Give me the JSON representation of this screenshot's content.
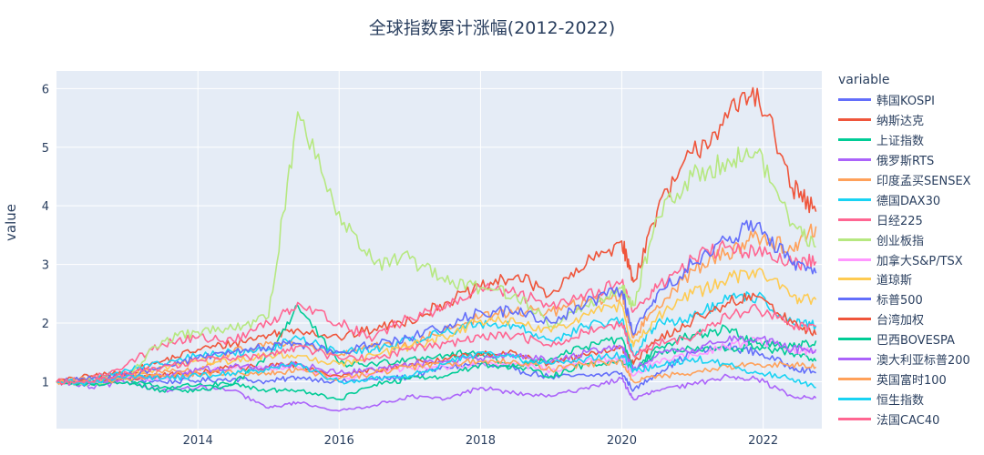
{
  "chart_data": {
    "type": "line",
    "title": "全球指数累计涨幅(2012-2022)",
    "xlabel": "",
    "ylabel": "value",
    "legend_title": "variable",
    "legend_position": "right",
    "grid": true,
    "xlim": [
      "2012-01-01",
      "2022-10-31"
    ],
    "ylim": [
      0.2,
      6.3
    ],
    "x_ticks": [
      "2014",
      "2016",
      "2018",
      "2020",
      "2022"
    ],
    "y_ticks": [
      1,
      2,
      3,
      4,
      5,
      6
    ],
    "x": [
      "2012-01",
      "2012-07",
      "2013-01",
      "2013-07",
      "2014-01",
      "2014-07",
      "2015-01",
      "2015-06",
      "2016-01",
      "2016-07",
      "2017-01",
      "2017-07",
      "2018-01",
      "2018-07",
      "2019-01",
      "2019-07",
      "2020-01",
      "2020-03",
      "2020-07",
      "2021-01",
      "2021-07",
      "2021-12",
      "2022-06",
      "2022-10"
    ],
    "series": [
      {
        "name": "韩国KOSPI",
        "color": "#636efa",
        "values": [
          1.0,
          0.98,
          1.05,
          1.0,
          1.02,
          1.05,
          1.0,
          1.08,
          1.0,
          1.04,
          1.08,
          1.25,
          1.3,
          1.2,
          1.08,
          1.1,
          1.15,
          0.85,
          1.15,
          1.5,
          1.6,
          1.5,
          1.25,
          1.15
        ]
      },
      {
        "name": "纳斯达克",
        "color": "#ef553b",
        "values": [
          1.0,
          1.1,
          1.15,
          1.35,
          1.55,
          1.65,
          1.8,
          1.9,
          1.75,
          1.9,
          2.05,
          2.35,
          2.6,
          2.8,
          2.5,
          3.0,
          3.4,
          2.7,
          3.9,
          4.9,
          5.5,
          6.0,
          4.3,
          3.9
        ]
      },
      {
        "name": "上证指数",
        "color": "#00cc96",
        "values": [
          1.0,
          0.95,
          1.05,
          0.9,
          0.95,
          0.95,
          1.45,
          2.3,
          1.3,
          1.3,
          1.4,
          1.45,
          1.5,
          1.25,
          1.1,
          1.3,
          1.35,
          1.2,
          1.5,
          1.55,
          1.55,
          1.6,
          1.48,
          1.35
        ]
      },
      {
        "name": "俄罗斯RTS",
        "color": "#ab63fa",
        "values": [
          1.0,
          0.9,
          1.0,
          0.85,
          0.9,
          0.85,
          0.55,
          0.65,
          0.5,
          0.6,
          0.75,
          0.7,
          0.9,
          0.8,
          0.75,
          0.9,
          1.05,
          0.7,
          0.85,
          0.95,
          1.1,
          1.05,
          0.75,
          0.72
        ]
      },
      {
        "name": "印度孟买SENSEX",
        "color": "#ffa15a",
        "values": [
          1.0,
          1.05,
          1.1,
          1.15,
          1.2,
          1.5,
          1.65,
          1.65,
          1.45,
          1.6,
          1.6,
          1.9,
          2.1,
          2.2,
          2.2,
          2.35,
          2.5,
          1.75,
          2.3,
          2.9,
          3.2,
          3.5,
          3.25,
          3.65
        ]
      },
      {
        "name": "德国DAX30",
        "color": "#19d3f3",
        "values": [
          1.0,
          1.05,
          1.2,
          1.3,
          1.45,
          1.5,
          1.55,
          1.75,
          1.5,
          1.55,
          1.7,
          1.85,
          2.0,
          1.95,
          1.7,
          1.95,
          2.05,
          1.45,
          2.0,
          2.1,
          2.4,
          2.45,
          2.0,
          1.95
        ]
      },
      {
        "name": "日经225",
        "color": "#ff6692",
        "values": [
          1.0,
          1.05,
          1.3,
          1.65,
          1.75,
          1.7,
          2.0,
          2.35,
          2.0,
          1.75,
          2.1,
          2.25,
          2.6,
          2.5,
          2.3,
          2.5,
          2.7,
          2.2,
          2.6,
          3.1,
          3.3,
          3.2,
          3.0,
          3.05
        ]
      },
      {
        "name": "创业板指",
        "color": "#b6e880",
        "values": [
          1.0,
          0.95,
          1.1,
          1.7,
          1.85,
          1.9,
          2.1,
          5.6,
          3.9,
          3.0,
          3.1,
          2.7,
          2.6,
          2.5,
          1.95,
          2.3,
          2.6,
          2.3,
          3.8,
          4.5,
          4.8,
          4.9,
          3.7,
          3.3
        ]
      },
      {
        "name": "加拿大S&P/TSX",
        "color": "#ff97ff",
        "values": [
          1.0,
          0.98,
          1.05,
          1.05,
          1.15,
          1.25,
          1.2,
          1.25,
          1.05,
          1.15,
          1.25,
          1.25,
          1.3,
          1.3,
          1.2,
          1.35,
          1.4,
          1.1,
          1.35,
          1.45,
          1.6,
          1.7,
          1.55,
          1.5
        ]
      },
      {
        "name": "道琼斯",
        "color": "#fecb52",
        "values": [
          1.0,
          1.05,
          1.1,
          1.25,
          1.35,
          1.35,
          1.45,
          1.45,
          1.3,
          1.45,
          1.6,
          1.75,
          2.05,
          2.0,
          1.85,
          2.15,
          2.3,
          1.6,
          2.1,
          2.5,
          2.75,
          2.9,
          2.45,
          2.4
        ]
      },
      {
        "name": "标普500",
        "color": "#636efa",
        "values": [
          1.0,
          1.05,
          1.1,
          1.25,
          1.4,
          1.5,
          1.6,
          1.65,
          1.5,
          1.65,
          1.75,
          1.95,
          2.2,
          2.2,
          2.0,
          2.35,
          2.55,
          1.8,
          2.5,
          3.0,
          3.4,
          3.7,
          3.0,
          2.85
        ]
      },
      {
        "name": "台湾加权",
        "color": "#ef553b",
        "values": [
          1.0,
          1.0,
          1.05,
          1.1,
          1.15,
          1.25,
          1.25,
          1.3,
          1.1,
          1.2,
          1.3,
          1.4,
          1.45,
          1.5,
          1.3,
          1.45,
          1.6,
          1.3,
          1.7,
          2.05,
          2.35,
          2.45,
          2.0,
          1.8
        ]
      },
      {
        "name": "巴西BOVESPA",
        "color": "#00cc96",
        "values": [
          1.0,
          0.95,
          1.0,
          0.85,
          0.85,
          0.95,
          0.85,
          0.85,
          0.7,
          0.95,
          1.05,
          1.1,
          1.3,
          1.25,
          1.4,
          1.6,
          1.75,
          1.2,
          1.6,
          1.8,
          1.9,
          1.65,
          1.6,
          1.7
        ]
      },
      {
        "name": "澳大利亚标普200",
        "color": "#ab63fa",
        "values": [
          1.0,
          1.0,
          1.05,
          1.1,
          1.2,
          1.25,
          1.25,
          1.3,
          1.15,
          1.2,
          1.3,
          1.35,
          1.4,
          1.45,
          1.35,
          1.5,
          1.6,
          1.2,
          1.45,
          1.55,
          1.7,
          1.75,
          1.55,
          1.55
        ]
      },
      {
        "name": "英国富时100",
        "color": "#ffa15a",
        "values": [
          1.0,
          1.0,
          1.05,
          1.1,
          1.15,
          1.15,
          1.15,
          1.2,
          1.05,
          1.15,
          1.25,
          1.3,
          1.35,
          1.35,
          1.2,
          1.3,
          1.35,
          1.0,
          1.1,
          1.15,
          1.25,
          1.3,
          1.3,
          1.25
        ]
      },
      {
        "name": "恒生指数",
        "color": "#19d3f3",
        "values": [
          1.0,
          0.98,
          1.1,
          1.05,
          1.1,
          1.15,
          1.2,
          1.3,
          1.0,
          1.05,
          1.1,
          1.3,
          1.5,
          1.4,
          1.3,
          1.4,
          1.45,
          1.2,
          1.25,
          1.4,
          1.3,
          1.15,
          1.05,
          0.9
        ]
      },
      {
        "name": "法国CAC40",
        "color": "#ff6692",
        "values": [
          1.0,
          1.0,
          1.15,
          1.25,
          1.35,
          1.4,
          1.45,
          1.6,
          1.4,
          1.4,
          1.55,
          1.65,
          1.75,
          1.8,
          1.6,
          1.85,
          2.0,
          1.45,
          1.65,
          1.75,
          2.1,
          2.25,
          1.95,
          1.95
        ]
      }
    ]
  }
}
